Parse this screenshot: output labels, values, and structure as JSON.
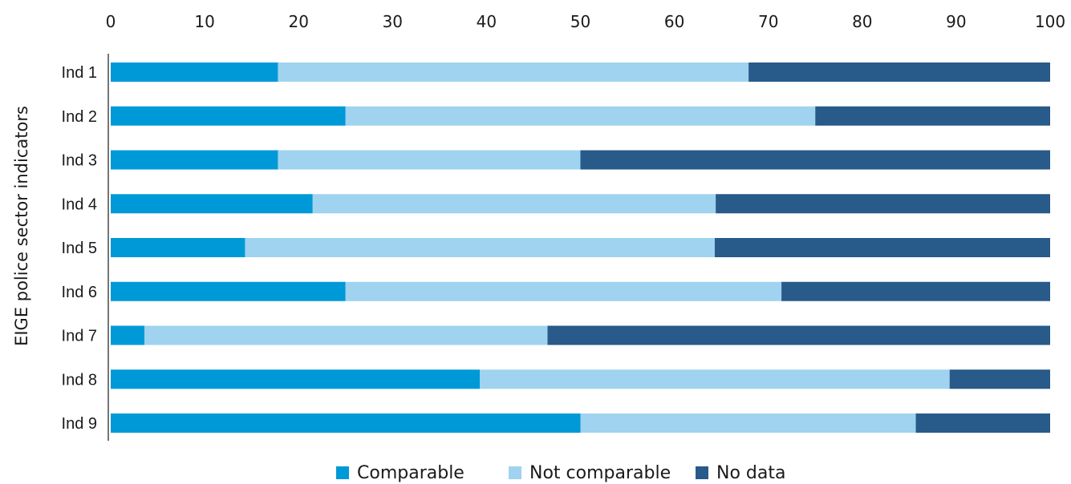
{
  "chart_data": {
    "type": "bar",
    "orientation": "horizontal",
    "stacked": true,
    "ylabel": "EIGE police sector indicators",
    "xlabel": "",
    "xlim": [
      0,
      100
    ],
    "x_ticks": [
      "0",
      "10",
      "20",
      "30",
      "40",
      "50",
      "60",
      "70",
      "80",
      "90",
      "100"
    ],
    "x_axis_position": "top",
    "grid": false,
    "legend_position": "bottom",
    "categories": [
      "Ind 1",
      "Ind 2",
      "Ind 3",
      "Ind 4",
      "Ind 5",
      "Ind 6",
      "Ind 7",
      "Ind 8",
      "Ind 9"
    ],
    "series": [
      {
        "name": "Comparable",
        "color": "#0099d8",
        "values": [
          17.8,
          25.0,
          17.8,
          21.5,
          14.3,
          25.0,
          3.6,
          39.3,
          50.0
        ]
      },
      {
        "name": "Not comparable",
        "color": "#9fd3ef",
        "values": [
          50.1,
          50.0,
          32.2,
          42.9,
          50.0,
          46.4,
          42.9,
          50.0,
          35.7
        ]
      },
      {
        "name": "No data",
        "color": "#285a8a",
        "values": [
          32.1,
          25.0,
          50.0,
          35.6,
          35.7,
          28.6,
          53.5,
          10.7,
          14.3
        ]
      }
    ]
  }
}
